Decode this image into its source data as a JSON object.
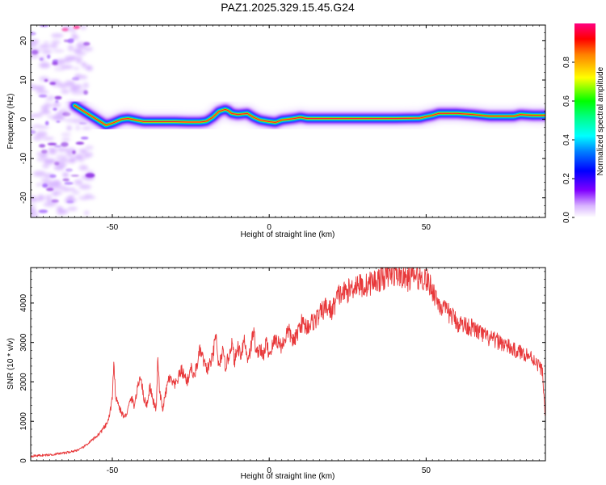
{
  "figure_title": "PAZ1.2025.329.15.45.G24",
  "chart_data": [
    {
      "type": "heatmap",
      "title": "PAZ1.2025.329.15.45.G24",
      "xlabel": "Height of straight line (km)",
      "ylabel": "Frequency (Hz)",
      "xlim": [
        -76,
        88
      ],
      "ylim": [
        -25,
        24
      ],
      "xticks": [
        -50,
        0,
        50
      ],
      "yticks": [
        -20,
        -10,
        0,
        10,
        20
      ],
      "grid": false,
      "ridge_track": {
        "x": [
          -62,
          -58,
          -55,
          -52,
          -50,
          -47,
          -45,
          -42,
          -40,
          -35,
          -30,
          -26,
          -22,
          -20,
          -18,
          -16,
          -14,
          -13,
          -12,
          -10,
          -7,
          -5,
          -3,
          0,
          2,
          4,
          6,
          8,
          10,
          12,
          20,
          30,
          40,
          48,
          50,
          52,
          54,
          60,
          65,
          70,
          75,
          78,
          80,
          84,
          88
        ],
        "y": [
          3.5,
          1.5,
          0,
          -1.5,
          -1,
          0,
          0.2,
          -0.3,
          -0.6,
          -0.6,
          -0.6,
          -0.7,
          -0.7,
          -0.5,
          0.5,
          2,
          2.5,
          2.2,
          1.5,
          1.2,
          1.5,
          0.5,
          -0.2,
          -0.6,
          -0.8,
          -0.2,
          0,
          0.2,
          0.5,
          0.2,
          0.2,
          0.2,
          0.2,
          0.3,
          0.7,
          1,
          1.5,
          1.5,
          1.2,
          0.8,
          0.8,
          0.8,
          1.2,
          1,
          1
        ]
      },
      "noise_region_x": [
        -76,
        -57
      ]
    },
    {
      "type": "colorbar",
      "label": "Normalized spectral amplitude",
      "lim": [
        0,
        1
      ],
      "ticks": [
        "0.0",
        "0.2",
        "0.4",
        "0.6",
        "0.8"
      ],
      "colormap": [
        "#ffffff",
        "#8000ff",
        "#0000ff",
        "#00ffff",
        "#00ff00",
        "#ffff00",
        "#ff8000",
        "#ff0000",
        "#ff0080"
      ]
    },
    {
      "type": "line",
      "xlabel": "Height of straight line (km)",
      "ylabel": "SNR (10 * v/v)",
      "xlim": [
        -76,
        88
      ],
      "ylim": [
        0,
        4900
      ],
      "xticks": [
        -50,
        0,
        50
      ],
      "yticks": [
        0,
        1000,
        2000,
        3000,
        4000
      ],
      "color": "#e8383a",
      "grid": false,
      "series": [
        {
          "name": "SNR",
          "x": [
            -76,
            -70,
            -65,
            -62,
            -60,
            -58,
            -56,
            -54,
            -52,
            -51,
            -50,
            -49.5,
            -49,
            -48,
            -47,
            -46,
            -45,
            -44,
            -43,
            -42,
            -41,
            -40,
            -39,
            -38,
            -37,
            -36,
            -35.5,
            -35,
            -34,
            -33,
            -32,
            -30,
            -28,
            -26,
            -25,
            -24,
            -22,
            -20,
            -18,
            -17,
            -16,
            -15,
            -14,
            -13,
            -12,
            -11,
            -10,
            -9,
            -8,
            -7,
            -6,
            -5,
            -4,
            -3,
            -2,
            -1,
            0,
            2,
            4,
            6,
            8,
            10,
            12,
            15,
            18,
            20,
            22,
            25,
            28,
            30,
            32,
            35,
            38,
            40,
            42,
            44,
            46,
            48,
            50,
            52,
            54,
            56,
            58,
            60,
            62,
            64,
            66,
            68,
            70,
            72,
            74,
            76,
            78,
            80,
            82,
            84,
            86,
            87,
            88
          ],
          "y": [
            120,
            150,
            200,
            250,
            300,
            420,
            550,
            700,
            900,
            1100,
            1600,
            2400,
            1700,
            1400,
            1200,
            1100,
            1300,
            1600,
            1400,
            1800,
            2200,
            1600,
            1400,
            1900,
            1500,
            1300,
            2600,
            1800,
            1300,
            1700,
            2100,
            1900,
            2300,
            2000,
            2400,
            2100,
            2800,
            2300,
            2600,
            3200,
            2300,
            2800,
            2400,
            2600,
            3000,
            2500,
            2900,
            2700,
            3100,
            2600,
            2800,
            3300,
            2700,
            2900,
            2600,
            3000,
            2700,
            3100,
            2900,
            3300,
            3000,
            3500,
            3400,
            3600,
            3900,
            3800,
            4200,
            4300,
            4500,
            4400,
            4500,
            4600,
            4700,
            4750,
            4700,
            4600,
            4700,
            4650,
            4600,
            4350,
            4000,
            3800,
            3700,
            3500,
            3450,
            3400,
            3300,
            3200,
            3100,
            3050,
            3000,
            2900,
            2800,
            2750,
            2700,
            2600,
            2400,
            2300,
            1100
          ]
        }
      ]
    }
  ]
}
